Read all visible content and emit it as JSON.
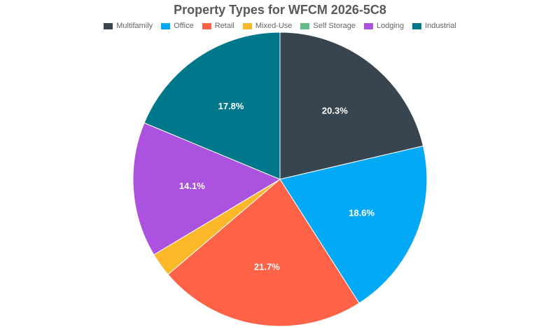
{
  "chart_data": {
    "type": "pie",
    "title": "Property Types for WFCM 2026-5C8",
    "legend_position": "top",
    "categories": [
      "Multifamily",
      "Office",
      "Retail",
      "Mixed-Use",
      "Self Storage",
      "Lodging",
      "Industrial"
    ],
    "values": [
      20.3,
      18.6,
      21.7,
      2.5,
      0,
      14.1,
      17.8
    ],
    "labels": [
      "20.3%",
      "18.6%",
      "21.7%",
      "",
      "",
      "14.1%",
      "17.8%"
    ],
    "colors": [
      "#36454f",
      "#03a9f4",
      "#ff6347",
      "#fbb829",
      "#66bb88",
      "#ab52de",
      "#00788c"
    ]
  }
}
